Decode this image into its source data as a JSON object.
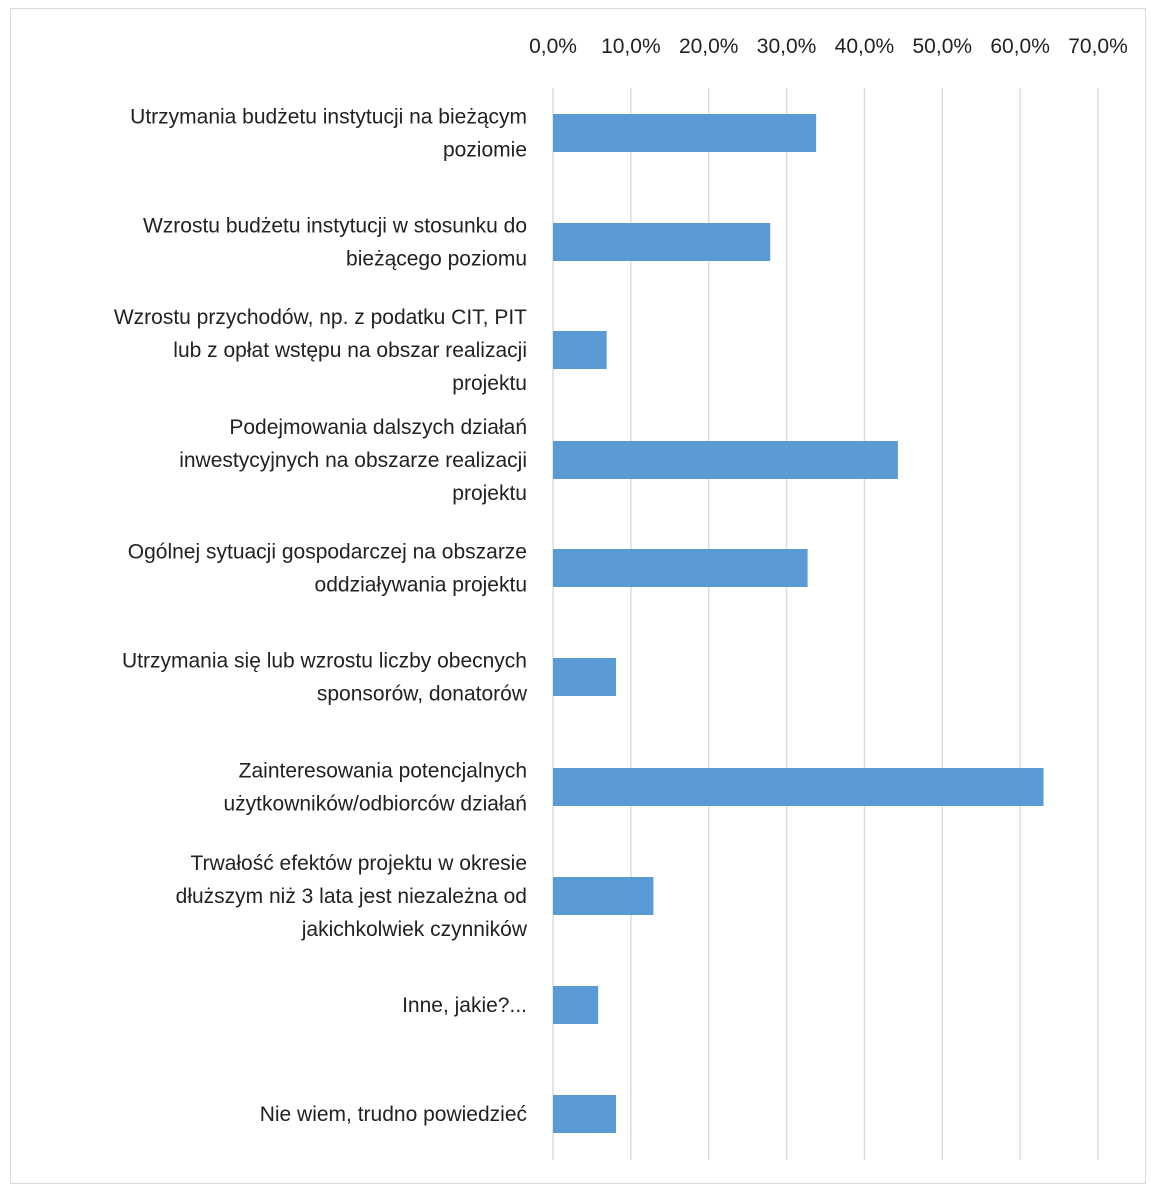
{
  "chart_data": {
    "type": "bar",
    "orientation": "horizontal",
    "categories": [
      [
        "Utrzymania budżetu instytucji na bieżącym",
        "poziomie"
      ],
      [
        "Wzrostu budżetu instytucji w stosunku do",
        "bieżącego poziomu"
      ],
      [
        "Wzrostu przychodów, np. z podatku CIT, PIT",
        "lub z opłat wstępu na obszar realizacji",
        "projektu"
      ],
      [
        "Podejmowania dalszych działań",
        "inwestycyjnych na obszarze realizacji",
        "projektu"
      ],
      [
        "Ogólnej sytuacji gospodarczej na obszarze",
        "oddziaływania projektu"
      ],
      [
        "Utrzymania się lub wzrostu liczby obecnych",
        "sponsorów, donatorów"
      ],
      [
        "Zainteresowania potencjalnych",
        "użytkowników/odbiorców działań"
      ],
      [
        "Trwałość efektów projektu w okresie",
        "dłuższym niż 3 lata jest niezależna od",
        "jakichkolwiek czynników"
      ],
      [
        "Inne, jakie?..."
      ],
      [
        "Nie wiem, trudno powiedzieć"
      ]
    ],
    "values": [
      33.8,
      27.9,
      6.9,
      44.3,
      32.7,
      8.1,
      63.0,
      12.9,
      5.8,
      8.1
    ],
    "xlim": [
      0,
      70
    ],
    "xticks": [
      "0,0%",
      "10,0%",
      "20,0%",
      "30,0%",
      "40,0%",
      "50,0%",
      "60,0%",
      "70,0%"
    ],
    "xtick_values": [
      0,
      10,
      20,
      30,
      40,
      50,
      60,
      70
    ],
    "xaxis_position": "top",
    "grid": true,
    "bar_color": "#5b9bd5",
    "grid_color": "#d9d9d9",
    "title": "",
    "xlabel": "",
    "ylabel": ""
  }
}
